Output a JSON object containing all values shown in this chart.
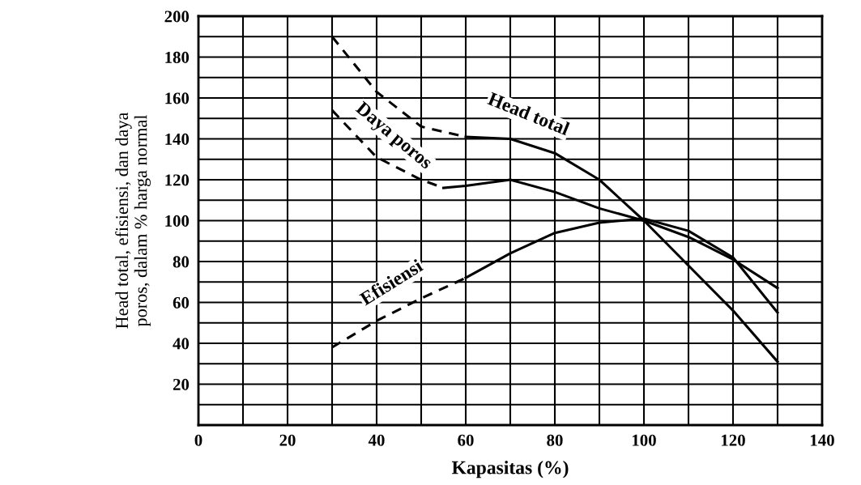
{
  "chart_data": {
    "type": "line",
    "xlabel": "Kapasitas (%)",
    "ylabel": "Head total, efisiensi, dan daya\nporos, dalam % harga normal",
    "xlim": [
      0,
      140
    ],
    "ylim": [
      0,
      200
    ],
    "xticks": [
      0,
      {
        "value": 10,
        "label": null
      },
      20,
      {
        "value": 30,
        "label": null
      },
      40,
      {
        "value": 50,
        "label": null
      },
      60,
      {
        "value": 70,
        "label": null
      },
      80,
      {
        "value": 90,
        "label": null
      },
      100,
      {
        "value": 110,
        "label": null
      },
      120,
      {
        "value": 130,
        "label": null
      },
      140
    ],
    "yticks": [
      {
        "value": 0,
        "label": null
      },
      {
        "value": 10,
        "label": null
      },
      20,
      {
        "value": 30,
        "label": null
      },
      40,
      {
        "value": 50,
        "label": null
      },
      60,
      {
        "value": 70,
        "label": null
      },
      80,
      {
        "value": 90,
        "label": null
      },
      100,
      {
        "value": 110,
        "label": null
      },
      120,
      {
        "value": 130,
        "label": null
      },
      140,
      {
        "value": 150,
        "label": null
      },
      160,
      {
        "value": 170,
        "label": null
      },
      180,
      {
        "value": 190,
        "label": null
      },
      200
    ],
    "grid": true,
    "marker": "none",
    "series": [
      {
        "color": "#000000",
        "line_style": "dashed",
        "x": [
          30,
          40,
          50,
          60
        ],
        "values": [
          190,
          163,
          146,
          141
        ]
      },
      {
        "name": "Head total",
        "color": "#000000",
        "line_style": "solid",
        "x": [
          60,
          70,
          80,
          90,
          100,
          110,
          120,
          130
        ],
        "values": [
          141,
          140,
          133,
          120,
          100,
          78,
          56,
          31
        ]
      },
      {
        "name": "Daya poros",
        "color": "#000000",
        "line_style": "dashed",
        "x": [
          30,
          40,
          50,
          55
        ],
        "values": [
          154,
          131,
          120,
          116
        ]
      },
      {
        "color": "#000000",
        "line_style": "solid",
        "x": [
          55,
          60,
          70,
          80,
          90,
          100,
          110,
          120,
          130
        ],
        "values": [
          116,
          117,
          120,
          114,
          106,
          100,
          92,
          81,
          67
        ]
      },
      {
        "name": "Efisiensi",
        "color": "#000000",
        "line_style": "dashed",
        "x": [
          30,
          40,
          50,
          60
        ],
        "values": [
          38,
          51,
          62,
          72
        ]
      },
      {
        "color": "#000000",
        "line_style": "solid",
        "x": [
          60,
          70,
          80,
          90,
          100,
          110,
          120,
          130
        ],
        "values": [
          72,
          84,
          94,
          99,
          101,
          95,
          82,
          55
        ]
      }
    ]
  }
}
